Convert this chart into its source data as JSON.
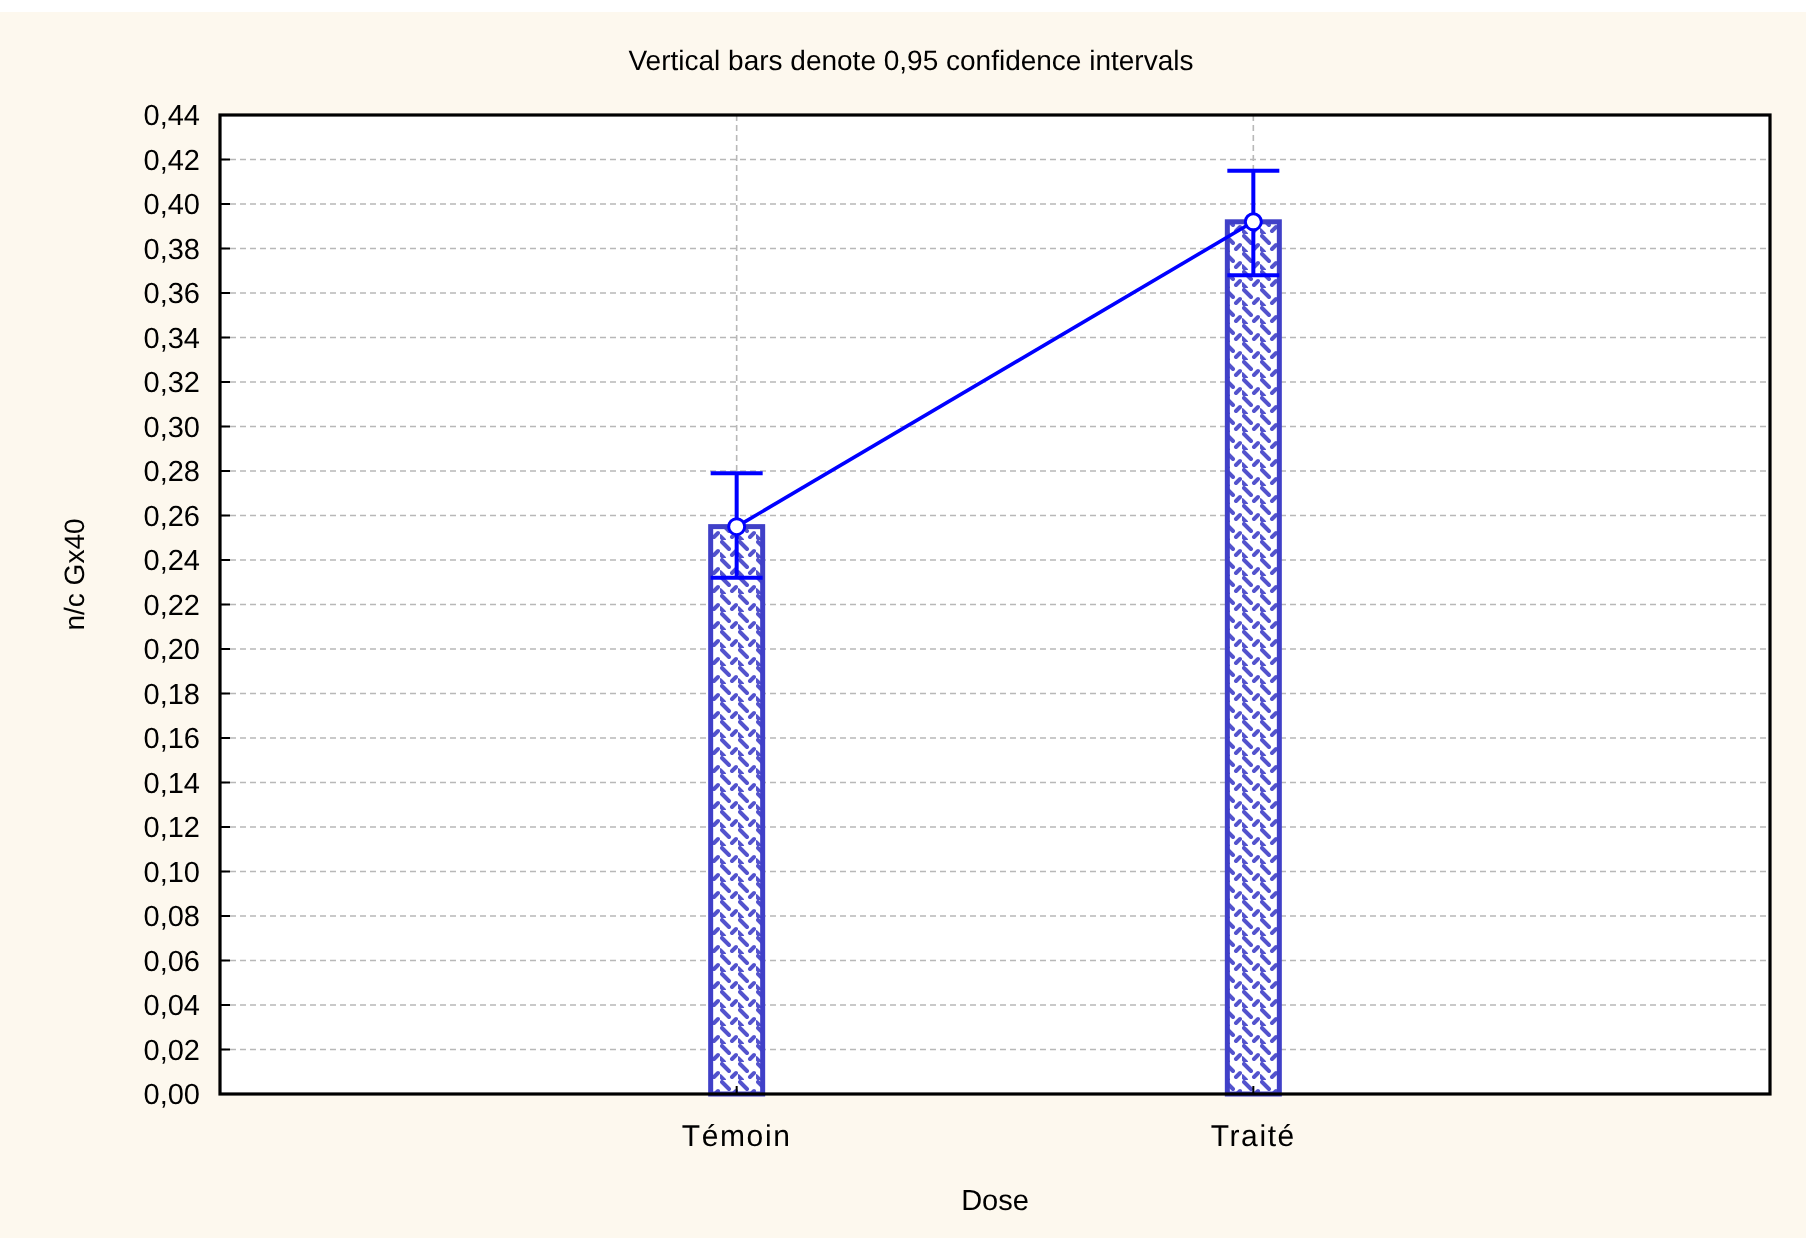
{
  "chart_data": {
    "type": "bar",
    "title": "Vertical bars denote 0,95 confidence intervals",
    "xlabel": "Dose",
    "ylabel": "n/c Gx40",
    "categories": [
      "Témoin",
      "Traité"
    ],
    "series": [
      {
        "color": "#4040c8",
        "values": [
          0.255,
          0.392
        ]
      },
      {
        "type": "line",
        "color": "#0000ff",
        "values": [
          0.255,
          0.392
        ],
        "errors": [
          [
            0.232,
            0.279
          ],
          [
            0.368,
            0.415
          ]
        ]
      }
    ],
    "marker": "circle",
    "ylim": [
      0,
      0.44
    ],
    "yticks": [
      {
        "value": 0,
        "label": "0,00"
      },
      {
        "value": 0.02,
        "label": "0,02"
      },
      {
        "value": 0.04,
        "label": "0,04"
      },
      {
        "value": 0.06,
        "label": "0,06"
      },
      {
        "value": 0.08,
        "label": "0,08"
      },
      {
        "value": 0.1,
        "label": "0,10"
      },
      {
        "value": 0.12,
        "label": "0,12"
      },
      {
        "value": 0.14,
        "label": "0,14"
      },
      {
        "value": 0.16,
        "label": "0,16"
      },
      {
        "value": 0.18,
        "label": "0,18"
      },
      {
        "value": 0.2,
        "label": "0,20"
      },
      {
        "value": 0.22,
        "label": "0,22"
      },
      {
        "value": 0.24,
        "label": "0,24"
      },
      {
        "value": 0.26,
        "label": "0,26"
      },
      {
        "value": 0.28,
        "label": "0,28"
      },
      {
        "value": 0.3,
        "label": "0,30"
      },
      {
        "value": 0.32,
        "label": "0,32"
      },
      {
        "value": 0.34,
        "label": "0,34"
      },
      {
        "value": 0.36,
        "label": "0,36"
      },
      {
        "value": 0.38,
        "label": "0,38"
      },
      {
        "value": 0.4,
        "label": "0,40"
      },
      {
        "value": 0.42,
        "label": "0,42"
      },
      {
        "value": 0.44,
        "label": "0,44"
      }
    ],
    "grid": true
  }
}
